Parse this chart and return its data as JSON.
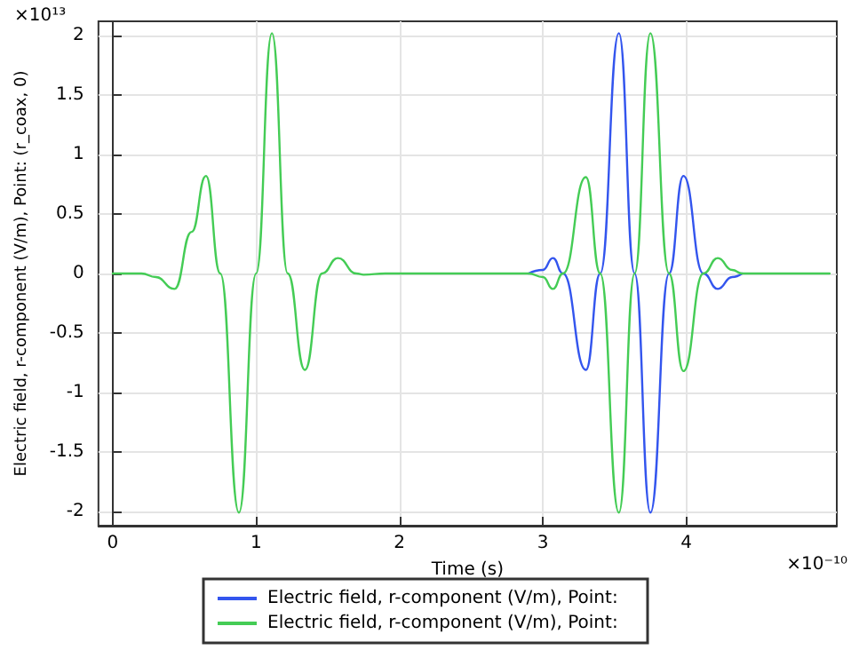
{
  "chart_data": {
    "type": "line",
    "xlabel": "Time (s)",
    "ylabel": "Electric field, r-component (V/m), Point: (r_coax, 0)",
    "annotations": [
      "×10¹³",
      "×10⁻¹⁰"
    ],
    "x": [
      0,
      0.2,
      0.3,
      0.43,
      0.55,
      0.65,
      0.75,
      0.88,
      1.0,
      1.11,
      1.22,
      1.34,
      1.46,
      1.57,
      1.7,
      1.75,
      1.9,
      2.9,
      3.0,
      3.07,
      3.14,
      3.3,
      3.4,
      3.53,
      3.64,
      3.75,
      3.88,
      3.98,
      4.12,
      4.22,
      4.32,
      4.39,
      5.0
    ],
    "series": [
      {
        "name": "Electric field, r-component (V/m), Point:",
        "color": "#3355ee",
        "values": [
          null,
          null,
          null,
          null,
          null,
          null,
          null,
          null,
          null,
          null,
          null,
          null,
          null,
          null,
          null,
          null,
          null,
          0,
          0.03,
          0.13,
          0,
          -0.81,
          0,
          2.02,
          0,
          -2.01,
          0,
          0.82,
          0,
          -0.13,
          -0.03,
          0,
          null
        ]
      },
      {
        "name": "Electric field, r-component (V/m), Point:",
        "color": "#44cc55",
        "values": [
          0,
          0,
          -0.03,
          -0.13,
          0.35,
          0.82,
          0,
          -2.01,
          0,
          2.02,
          0,
          -0.81,
          0,
          0.13,
          0,
          -0.01,
          0,
          0,
          -0.03,
          -0.13,
          0,
          0.81,
          0,
          -2.01,
          0,
          2.02,
          0,
          -0.82,
          0,
          0.13,
          0.03,
          0,
          0
        ]
      }
    ],
    "xlim": [
      -0.1,
      5.05
    ],
    "xticks": [
      0,
      1,
      2,
      3,
      4
    ],
    "ylim": [
      -2.12,
      2.12
    ],
    "yticks": [
      -2,
      -1.5,
      -1,
      -0.5,
      0,
      0.5,
      1,
      1.5,
      2
    ],
    "grid": true,
    "legend": "bottom",
    "marker": "none",
    "line_style": "solid"
  }
}
